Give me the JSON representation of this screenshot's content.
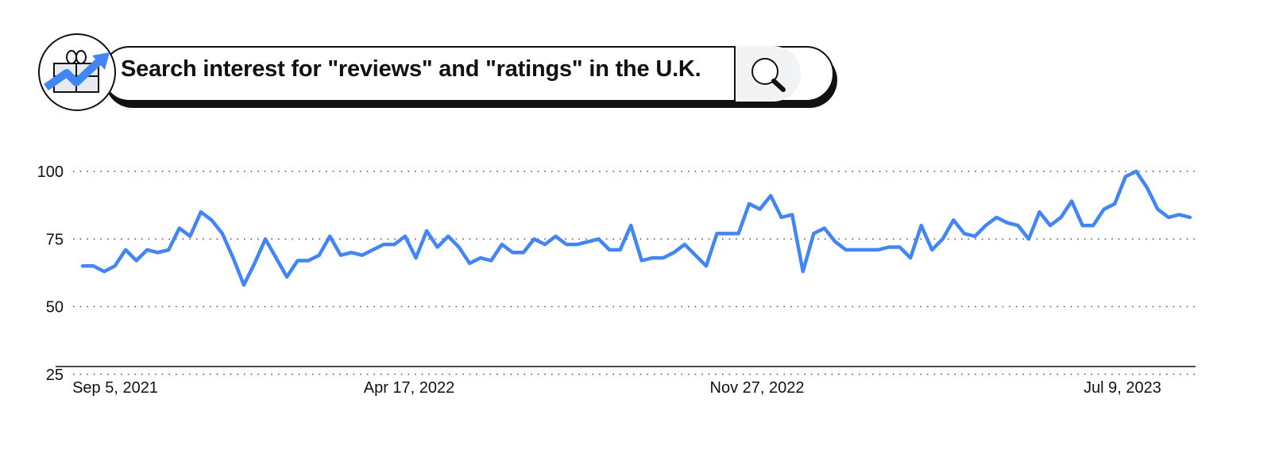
{
  "header": {
    "title": "Search interest for \"reviews\" and \"ratings\" in the U.K.",
    "logo_icon": "gift-trend-icon",
    "search_icon": "search-icon"
  },
  "colors": {
    "line": "#4285F4",
    "axis": "#111111",
    "grid": "#555555",
    "search_button_bg": "#f1f3f4"
  },
  "chart_data": {
    "type": "line",
    "title": "Search interest for \"reviews\" and \"ratings\" in the U.K.",
    "xlabel": "",
    "ylabel": "",
    "ylim": [
      0,
      100
    ],
    "yticks": [
      25,
      50,
      75,
      100
    ],
    "grid": "horizontal-dotted",
    "x_tick_labels": [
      "Sep 5, 2021",
      "Apr 17, 2022",
      "Nov 27, 2022",
      "Jul 9, 2023"
    ],
    "series": [
      {
        "values": [
          65,
          65,
          63,
          65,
          71,
          67,
          71,
          70,
          71,
          79,
          76,
          85,
          82,
          77,
          68,
          58,
          66,
          75,
          68,
          61,
          67,
          67,
          69,
          76,
          69,
          70,
          69,
          71,
          73,
          73,
          76,
          68,
          78,
          72,
          76,
          72,
          66,
          68,
          67,
          73,
          70,
          70,
          75,
          73,
          76,
          73,
          73,
          74,
          75,
          71,
          71,
          80,
          67,
          68,
          68,
          70,
          73,
          69,
          65,
          77,
          77,
          77,
          88,
          86,
          91,
          83,
          84,
          63,
          77,
          79,
          74,
          71,
          71,
          71,
          71,
          72,
          72,
          68,
          80,
          71,
          75,
          82,
          77,
          76,
          80,
          83,
          81,
          80,
          75,
          85,
          80,
          83,
          89,
          80,
          80,
          86,
          88,
          98,
          100,
          94,
          86,
          83,
          84,
          83
        ]
      }
    ]
  }
}
